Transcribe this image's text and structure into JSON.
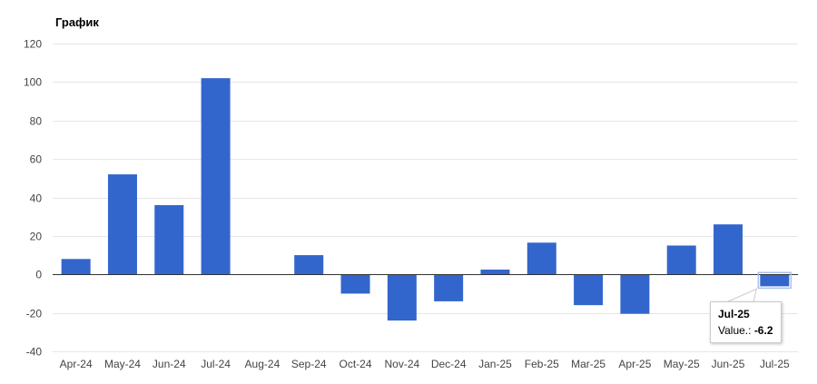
{
  "chart_data": {
    "type": "bar",
    "title": "График",
    "categories": [
      "Apr-24",
      "May-24",
      "Jun-24",
      "Jul-24",
      "Aug-24",
      "Sep-24",
      "Oct-24",
      "Nov-24",
      "Dec-24",
      "Jan-25",
      "Feb-25",
      "Mar-25",
      "Apr-25",
      "May-25",
      "Jun-25",
      "Jul-25"
    ],
    "values": [
      8,
      52,
      36,
      102,
      0,
      10,
      -10,
      -24,
      -14,
      2.5,
      16.5,
      -16,
      -20.5,
      15,
      26,
      -6.2
    ],
    "ylim": [
      -40,
      120
    ],
    "yticks": [
      120,
      100,
      80,
      60,
      40,
      20,
      0,
      -20,
      -40
    ],
    "grid": true,
    "bar_color": "#3366cc",
    "legend": "none"
  },
  "tooltip": {
    "title": "Jul-25",
    "label": "Value.:",
    "value": "-6.2"
  }
}
